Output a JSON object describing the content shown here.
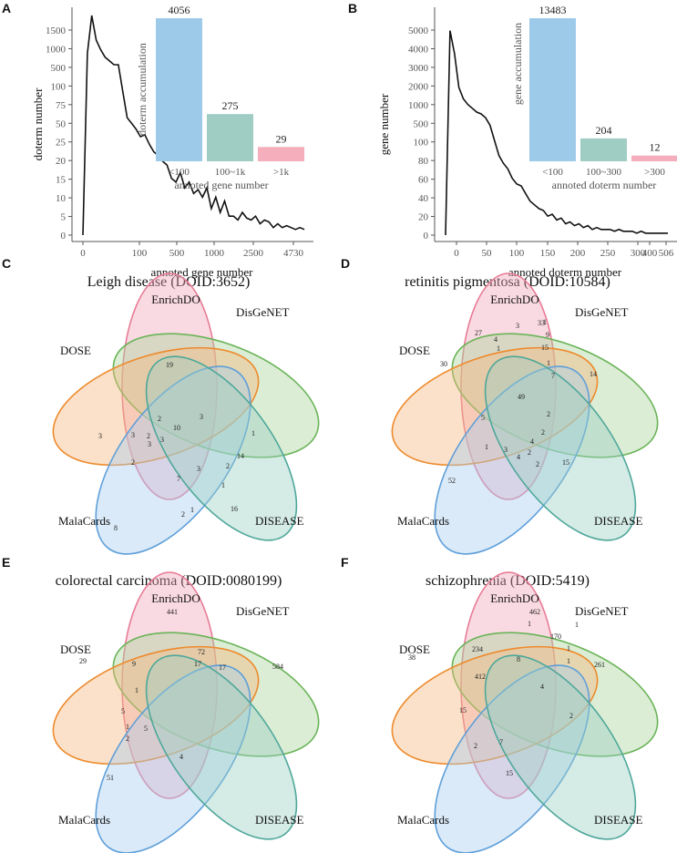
{
  "colors": {
    "bar_blue": "#9ecaea",
    "bar_teal": "#9fcdc4",
    "bar_pink": "#f4aebc",
    "line": "#111111",
    "axis": "#555555",
    "venn": {
      "EnrichDO": {
        "fill": "#f3a6bb",
        "stroke": "#e77c96"
      },
      "DisGeNET": {
        "fill": "#a9d59a",
        "stroke": "#6ab458"
      },
      "DOSE": {
        "fill": "#f5b87f",
        "stroke": "#ed8a2c"
      },
      "MalaCards": {
        "fill": "#a7cdef",
        "stroke": "#5e9fd9"
      },
      "DISEASE": {
        "fill": "#9ccfc3",
        "stroke": "#4ea79a"
      }
    }
  },
  "chart_data": [
    {
      "id": "A",
      "type": "line",
      "panel_letter": "A",
      "xlabel": "annoted gene number",
      "ylabel": "doterm number",
      "xticks": [
        "0",
        "100",
        "500",
        "1000",
        "2500",
        "4730"
      ],
      "yticks": [
        "0",
        "5",
        "10",
        "15",
        "20",
        "25",
        "50",
        "75",
        "100",
        "500",
        "1000",
        "1500"
      ],
      "x_index": [
        0,
        2,
        4,
        6,
        8,
        10,
        12,
        14,
        16,
        18,
        20,
        22,
        24,
        26,
        28,
        30,
        32,
        34,
        36,
        38,
        40,
        42,
        44,
        46,
        48,
        50,
        52,
        54,
        56,
        58,
        60,
        62,
        64,
        66,
        68,
        70,
        72,
        74,
        76,
        78,
        80,
        82,
        84,
        86,
        88,
        90,
        92,
        94,
        96,
        98,
        100
      ],
      "y_index": [
        0,
        9.6,
        11.6,
        10.3,
        9.8,
        9.4,
        9.2,
        9.0,
        9.0,
        7.6,
        6.2,
        5.9,
        5.6,
        5.2,
        5.3,
        4.8,
        4.4,
        4.2,
        3.9,
        3.7,
        3.0,
        2.8,
        3.3,
        2.5,
        2.8,
        2.2,
        2.4,
        2.0,
        2.5,
        1.4,
        2.0,
        1.2,
        1.8,
        1.0,
        1.0,
        0.8,
        1.2,
        0.9,
        0.8,
        1.0,
        0.6,
        0.8,
        0.7,
        0.4,
        0.6,
        0.4,
        0.5,
        0.4,
        0.3,
        0.4,
        0.3
      ],
      "inset": {
        "type": "bar",
        "ylabel": "doterm accumulation",
        "xlabel": "annoted gene number",
        "categories": [
          "<100",
          "100~1k",
          ">1k"
        ],
        "values": [
          4056,
          275,
          29
        ],
        "value_labels": [
          "4056",
          "275",
          "29"
        ],
        "display_heights": [
          1.0,
          0.33,
          0.1
        ]
      }
    },
    {
      "id": "B",
      "type": "line",
      "panel_letter": "B",
      "xlabel": "annoted doterm number",
      "ylabel": "gene number",
      "xticks": [
        "0",
        "50",
        "100",
        "150",
        "200",
        "250",
        "300",
        "400",
        "506"
      ],
      "yticks": [
        "0",
        "20",
        "40",
        "60",
        "80",
        "100",
        "500",
        "1000",
        "2000",
        "3000",
        "4000",
        "5000"
      ],
      "x_index": [
        0,
        2,
        4,
        6,
        8,
        10,
        12,
        14,
        16,
        18,
        20,
        22,
        24,
        26,
        28,
        30,
        32,
        34,
        36,
        38,
        40,
        42,
        44,
        46,
        48,
        50,
        52,
        54,
        56,
        58,
        60,
        62,
        64,
        66,
        68,
        70,
        72,
        74,
        76,
        78,
        80,
        82,
        84,
        86,
        88,
        90,
        92,
        94,
        96,
        98,
        100
      ],
      "y_index": [
        0,
        10.8,
        9.6,
        7.8,
        7.2,
        6.9,
        6.7,
        6.5,
        6.4,
        6.2,
        5.8,
        5.0,
        4.2,
        3.8,
        3.5,
        3.0,
        2.7,
        2.6,
        2.2,
        1.8,
        1.6,
        1.4,
        1.3,
        1.0,
        1.1,
        0.8,
        0.9,
        0.6,
        0.7,
        0.5,
        0.6,
        0.4,
        0.5,
        0.3,
        0.4,
        0.3,
        0.3,
        0.3,
        0.2,
        0.3,
        0.2,
        0.2,
        0.2,
        0.1,
        0.2,
        0.1,
        0.1,
        0.1,
        0.1,
        0.1,
        0.1
      ],
      "inset": {
        "type": "bar",
        "ylabel": "gene accumulation",
        "xlabel": "annoted doterm number",
        "categories": [
          "<100",
          "100~300",
          ">300"
        ],
        "values": [
          13483,
          204,
          12
        ],
        "value_labels": [
          "13483",
          "204",
          "12"
        ],
        "display_heights": [
          1.0,
          0.16,
          0.04
        ]
      }
    },
    {
      "id": "C",
      "type": "venn",
      "panel_letter": "C",
      "title": "Leigh disease (DOID:3652)",
      "sets": [
        "EnrichDO",
        "DisGeNET",
        "DOSE",
        "MalaCards",
        "DISEASE"
      ],
      "region_values": [
        "19",
        "1",
        "3",
        "8",
        "16",
        "2",
        "3",
        "10",
        "3",
        "2",
        "3",
        "3",
        "2",
        "7",
        "14",
        "2",
        "1",
        "2",
        "1",
        "3"
      ]
    },
    {
      "id": "D",
      "type": "venn",
      "panel_letter": "D",
      "title": "retinitis pigmentosa (DOID:10584)",
      "sets": [
        "EnrichDO",
        "DisGeNET",
        "DOSE",
        "MalaCards",
        "DISEASE"
      ],
      "region_values": [
        "33",
        "14",
        "30",
        "52",
        "15",
        "3",
        "1",
        "9",
        "27",
        "4",
        "1",
        "15",
        "1",
        "49",
        "7",
        "5",
        "2",
        "2",
        "4",
        "1",
        "3",
        "4",
        "2",
        "2"
      ]
    },
    {
      "id": "E",
      "type": "venn",
      "panel_letter": "E",
      "title": "colorectal carcinoma (DOID:0080199)",
      "sets": [
        "EnrichDO",
        "DisGeNET",
        "DOSE",
        "MalaCards",
        "DISEASE"
      ],
      "region_values": [
        "441",
        "584",
        "29",
        "51",
        "72",
        "17",
        "17",
        "9",
        "1",
        "5",
        "1",
        "5",
        "2",
        "4"
      ]
    },
    {
      "id": "F",
      "type": "venn",
      "panel_letter": "F",
      "title": "schizophrenia (DOID:5419)",
      "sets": [
        "EnrichDO",
        "DisGeNET",
        "DOSE",
        "MalaCards",
        "DISEASE"
      ],
      "region_values": [
        "462",
        "261",
        "38",
        "15",
        "1",
        "1",
        "170",
        "1",
        "1",
        "234",
        "8",
        "412",
        "4",
        "15",
        "2",
        "7",
        "2"
      ]
    }
  ]
}
